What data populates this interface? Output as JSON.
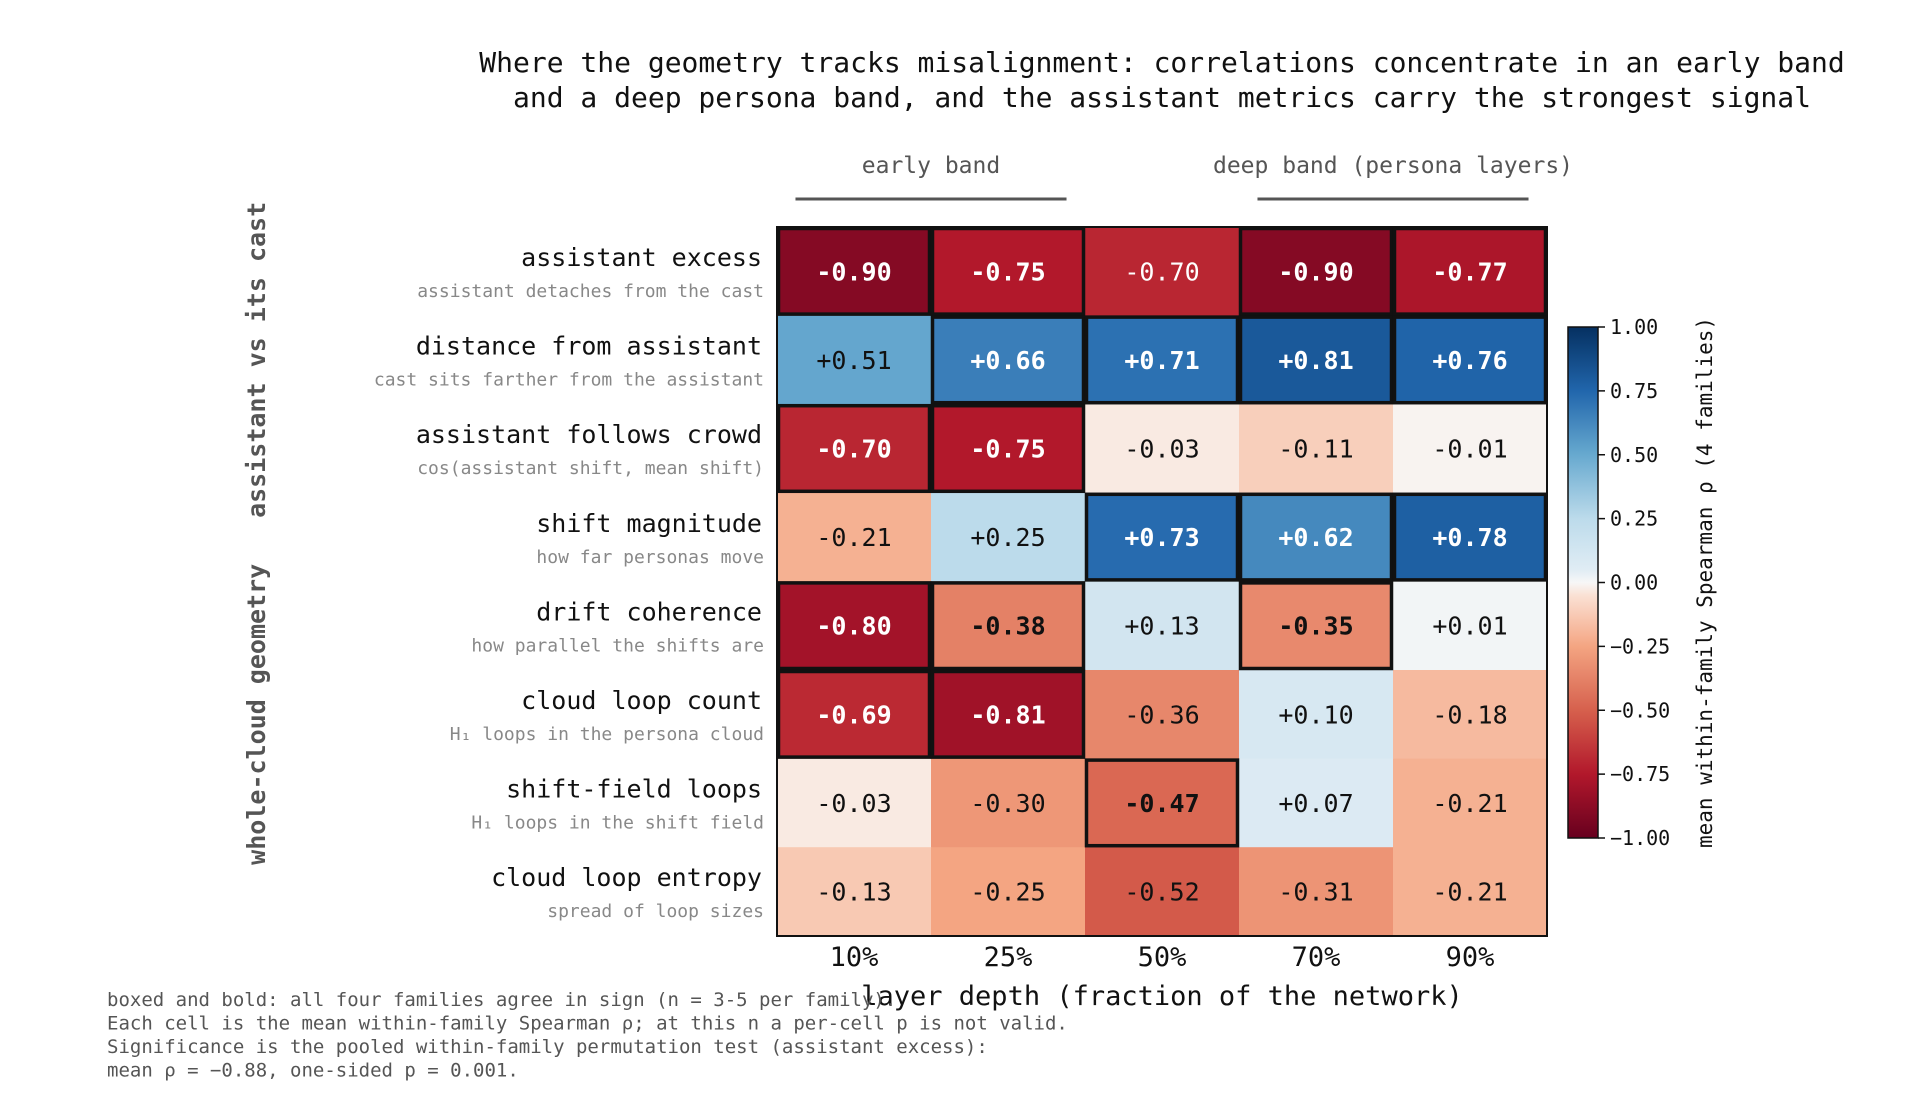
{
  "chart_data": {
    "type": "heatmap",
    "title": [
      "Where the geometry tracks misalignment: correlations concentrate in an early band",
      "and a deep persona band, and the assistant metrics carry the strongest signal"
    ],
    "bands": [
      {
        "label": "early band",
        "columns": [
          0,
          1
        ]
      },
      {
        "label": "deep band (persona layers)",
        "columns": [
          3,
          4
        ]
      }
    ],
    "groups": [
      {
        "label": "assistant vs its cast",
        "rows": [
          0,
          2
        ]
      },
      {
        "label": "whole-cloud geometry",
        "rows": [
          3,
          7
        ]
      }
    ],
    "columns": [
      "10%",
      "25%",
      "50%",
      "70%",
      "90%"
    ],
    "xlabel": "layer depth (fraction of the network)",
    "rows": [
      {
        "name": "assistant excess",
        "sub": "assistant detaches from the cast",
        "values": [
          -0.9,
          -0.75,
          -0.7,
          -0.9,
          -0.77
        ],
        "labels": [
          "-0.90",
          "-0.75",
          "-0.70",
          "-0.90",
          "-0.77"
        ],
        "boxed": [
          true,
          true,
          false,
          true,
          true
        ]
      },
      {
        "name": "distance from assistant",
        "sub": "cast sits farther from the assistant",
        "values": [
          0.51,
          0.66,
          0.71,
          0.81,
          0.76
        ],
        "labels": [
          "+0.51",
          "+0.66",
          "+0.71",
          "+0.81",
          "+0.76"
        ],
        "boxed": [
          false,
          true,
          true,
          true,
          true
        ]
      },
      {
        "name": "assistant follows crowd",
        "sub": "cos(assistant shift, mean shift)",
        "values": [
          -0.7,
          -0.75,
          -0.03,
          -0.11,
          -0.01
        ],
        "labels": [
          "-0.70",
          "-0.75",
          "-0.03",
          "-0.11",
          "-0.01"
        ],
        "boxed": [
          true,
          true,
          false,
          false,
          false
        ]
      },
      {
        "name": "shift magnitude",
        "sub": "how far personas move",
        "values": [
          -0.21,
          0.25,
          0.73,
          0.62,
          0.78
        ],
        "labels": [
          "-0.21",
          "+0.25",
          "+0.73",
          "+0.62",
          "+0.78"
        ],
        "boxed": [
          false,
          false,
          true,
          true,
          true
        ]
      },
      {
        "name": "drift coherence",
        "sub": "how parallel the shifts are",
        "values": [
          -0.8,
          -0.38,
          0.13,
          -0.35,
          0.01
        ],
        "labels": [
          "-0.80",
          "-0.38",
          "+0.13",
          "-0.35",
          "+0.01"
        ],
        "boxed": [
          true,
          true,
          false,
          true,
          false
        ]
      },
      {
        "name": "cloud loop count",
        "sub": "H₁ loops in the persona cloud",
        "values": [
          -0.69,
          -0.81,
          -0.36,
          0.1,
          -0.18
        ],
        "labels": [
          "-0.69",
          "-0.81",
          "-0.36",
          "+0.10",
          "-0.18"
        ],
        "boxed": [
          true,
          true,
          false,
          false,
          false
        ]
      },
      {
        "name": "shift-field loops",
        "sub": "H₁ loops in the shift field",
        "values": [
          -0.03,
          -0.3,
          -0.47,
          0.07,
          -0.21
        ],
        "labels": [
          "-0.03",
          "-0.30",
          "-0.47",
          "+0.07",
          "-0.21"
        ],
        "boxed": [
          false,
          false,
          true,
          false,
          false
        ]
      },
      {
        "name": "cloud loop entropy",
        "sub": "spread of loop sizes",
        "values": [
          -0.13,
          -0.25,
          -0.52,
          -0.31,
          -0.21
        ],
        "labels": [
          "-0.13",
          "-0.25",
          "-0.52",
          "-0.31",
          "-0.21"
        ],
        "boxed": [
          false,
          false,
          false,
          false,
          false
        ]
      }
    ],
    "colorbar": {
      "label": "mean within-family Spearman ρ (4 families)",
      "range": [
        -1.0,
        1.0
      ],
      "ticks": [
        "1.00",
        "0.75",
        "0.50",
        "0.25",
        "0.00",
        "−0.25",
        "−0.50",
        "−0.75",
        "−1.00"
      ],
      "colormap": "RdBu"
    },
    "notes": [
      "boxed and bold: all four families agree in sign (n = 3-5 per family).",
      "Each cell is the mean within-family Spearman ρ; at this n a per-cell p is not valid.",
      "Significance is the pooled within-family permutation test (assistant excess):",
      "mean ρ = −0.88, one-sided p = 0.001."
    ]
  }
}
